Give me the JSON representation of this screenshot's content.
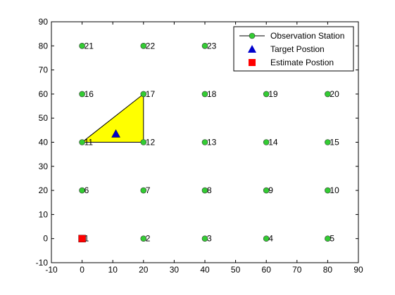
{
  "chart_data": {
    "type": "scatter",
    "xlim": [
      -10,
      90
    ],
    "ylim": [
      -10,
      90
    ],
    "xticks": [
      -10,
      0,
      10,
      20,
      30,
      40,
      50,
      60,
      70,
      80,
      90
    ],
    "yticks": [
      -10,
      0,
      10,
      20,
      30,
      40,
      50,
      60,
      70,
      80,
      90
    ],
    "grid": false,
    "legend_position": "top-right",
    "colors": {
      "station_fill": "#33cc33",
      "station_edge": "#333333",
      "target": "#0000cc",
      "estimate": "#ff0000",
      "triangle_fill": "#ffff00"
    },
    "series": [
      {
        "name": "Observation Station",
        "marker": "circle",
        "points": [
          {
            "label": "1",
            "x": 0,
            "y": 0
          },
          {
            "label": "2",
            "x": 20,
            "y": 0
          },
          {
            "label": "3",
            "x": 40,
            "y": 0
          },
          {
            "label": "4",
            "x": 60,
            "y": 0
          },
          {
            "label": "5",
            "x": 80,
            "y": 0
          },
          {
            "label": "6",
            "x": 0,
            "y": 20
          },
          {
            "label": "7",
            "x": 20,
            "y": 20
          },
          {
            "label": "8",
            "x": 40,
            "y": 20
          },
          {
            "label": "9",
            "x": 60,
            "y": 20
          },
          {
            "label": "10",
            "x": 80,
            "y": 20
          },
          {
            "label": "11",
            "x": 0,
            "y": 40
          },
          {
            "label": "12",
            "x": 20,
            "y": 40
          },
          {
            "label": "13",
            "x": 40,
            "y": 40
          },
          {
            "label": "14",
            "x": 60,
            "y": 40
          },
          {
            "label": "15",
            "x": 80,
            "y": 40
          },
          {
            "label": "16",
            "x": 0,
            "y": 60
          },
          {
            "label": "17",
            "x": 20,
            "y": 60
          },
          {
            "label": "18",
            "x": 40,
            "y": 60
          },
          {
            "label": "19",
            "x": 60,
            "y": 60
          },
          {
            "label": "20",
            "x": 80,
            "y": 60
          },
          {
            "label": "21",
            "x": 0,
            "y": 80
          },
          {
            "label": "22",
            "x": 20,
            "y": 80
          },
          {
            "label": "23",
            "x": 40,
            "y": 80
          }
        ]
      },
      {
        "name": "Target Postion",
        "marker": "triangle",
        "points": [
          {
            "x": 11,
            "y": 43.5
          }
        ]
      },
      {
        "name": "Estimate Postion",
        "marker": "square",
        "points": [
          {
            "x": 0,
            "y": 0
          }
        ]
      }
    ],
    "highlight_triangle": [
      [
        0,
        40
      ],
      [
        20,
        60
      ],
      [
        20,
        40
      ]
    ]
  }
}
